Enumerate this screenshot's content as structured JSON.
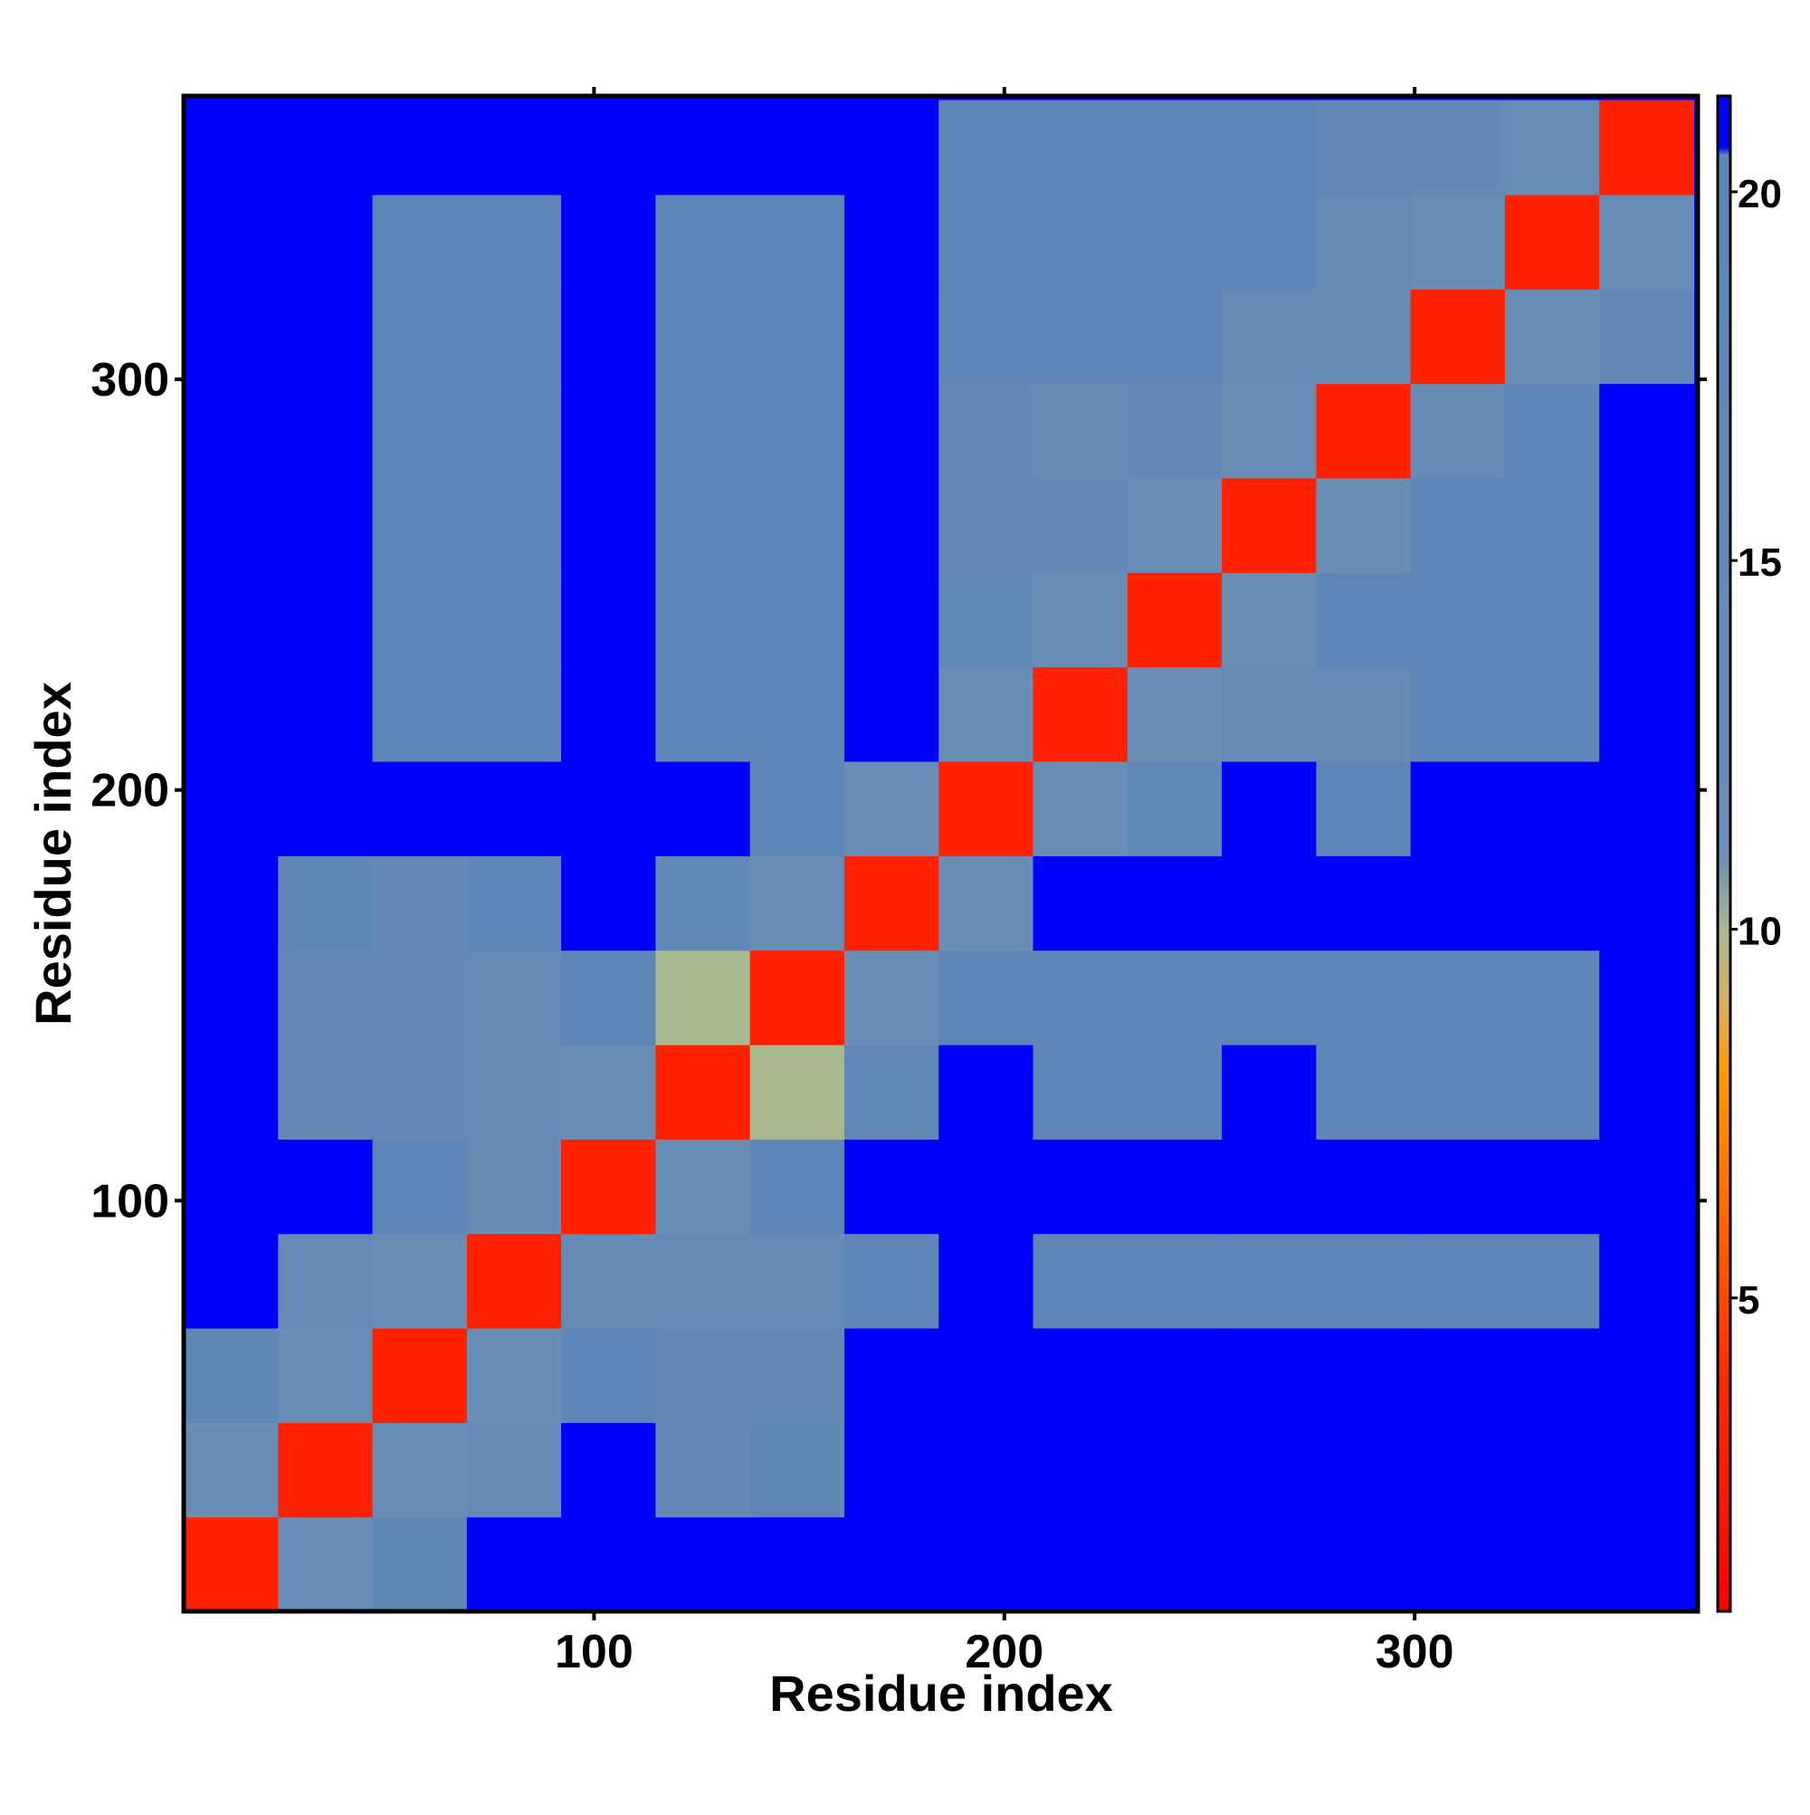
{
  "chart_data": {
    "type": "heatmap",
    "x_label": "Residue index",
    "y_label": "Residue index",
    "xlim": [
      0,
      369
    ],
    "ylim": [
      0,
      369
    ],
    "xticks": [
      100,
      200,
      300
    ],
    "yticks": [
      100,
      200,
      300
    ],
    "x_bins": [
      0,
      23,
      46,
      69,
      92,
      115,
      138,
      161,
      184,
      207,
      230,
      253,
      276,
      299,
      322,
      345,
      368
    ],
    "y_bins": [
      0,
      23,
      46,
      69,
      92,
      115,
      138,
      161,
      184,
      207,
      230,
      253,
      276,
      299,
      322,
      345,
      368
    ],
    "z": [
      [
        3,
        12,
        18,
        21,
        21,
        21,
        21,
        21,
        21,
        21,
        21,
        21,
        21,
        21,
        21,
        21
      ],
      [
        12,
        3,
        12,
        15,
        21,
        16,
        18,
        21,
        21,
        21,
        21,
        21,
        21,
        21,
        21,
        21
      ],
      [
        18,
        12,
        3,
        12,
        19,
        16,
        16,
        21,
        21,
        21,
        21,
        21,
        21,
        21,
        21,
        21
      ],
      [
        21,
        15,
        12,
        3,
        14,
        15,
        15,
        19,
        21,
        19,
        19,
        19,
        19,
        19,
        19,
        21
      ],
      [
        21,
        21,
        19,
        14,
        3,
        12,
        19,
        21,
        21,
        21,
        21,
        21,
        21,
        21,
        21,
        21
      ],
      [
        21,
        16,
        16,
        15,
        12,
        3,
        10,
        17,
        21,
        19,
        19,
        21,
        19,
        19,
        19,
        21
      ],
      [
        21,
        16,
        16,
        15,
        19,
        10,
        3,
        12,
        19,
        19,
        19,
        19,
        19,
        19,
        19,
        21
      ],
      [
        21,
        18,
        16,
        19,
        21,
        17,
        12,
        3,
        12,
        21,
        21,
        21,
        21,
        21,
        21,
        21
      ],
      [
        21,
        21,
        21,
        21,
        21,
        21,
        19,
        12,
        3,
        12,
        17,
        21,
        19,
        21,
        21,
        21
      ],
      [
        21,
        21,
        19,
        19,
        21,
        19,
        19,
        21,
        12,
        3,
        12,
        15,
        15,
        19,
        19,
        21
      ],
      [
        21,
        21,
        19,
        19,
        21,
        19,
        19,
        21,
        17,
        12,
        3,
        13,
        19,
        19,
        19,
        21
      ],
      [
        21,
        21,
        19,
        19,
        21,
        19,
        19,
        21,
        16,
        16,
        13,
        3,
        12,
        19,
        19,
        21
      ],
      [
        21,
        21,
        19,
        19,
        21,
        19,
        19,
        21,
        16,
        14,
        16,
        12,
        3,
        14,
        19,
        21
      ],
      [
        21,
        21,
        19,
        19,
        21,
        19,
        19,
        21,
        19,
        19,
        19,
        15,
        14,
        3,
        12,
        16
      ],
      [
        21,
        21,
        19,
        19,
        21,
        19,
        19,
        21,
        19,
        19,
        19,
        19,
        15,
        12,
        3,
        12
      ],
      [
        21,
        21,
        21,
        21,
        21,
        21,
        21,
        21,
        19,
        19,
        19,
        19,
        16,
        16,
        12,
        3
      ]
    ],
    "zlim": [
      0.75,
      21.3
    ],
    "zticks": [
      5,
      10,
      15,
      20
    ],
    "colorscale": [
      {
        "value": 0.75,
        "color": "#ff0000"
      },
      {
        "value": 4,
        "color": "#ff3000"
      },
      {
        "value": 8,
        "color": "#ff9900"
      },
      {
        "value": 9,
        "color": "#d8b060"
      },
      {
        "value": 10,
        "color": "#a8b890"
      },
      {
        "value": 11,
        "color": "#6b8fb5"
      },
      {
        "value": 20.5,
        "color": "#5b86b8"
      },
      {
        "value": 20.6,
        "color": "#0000ff"
      },
      {
        "value": 21.3,
        "color": "#0000ff"
      }
    ]
  }
}
